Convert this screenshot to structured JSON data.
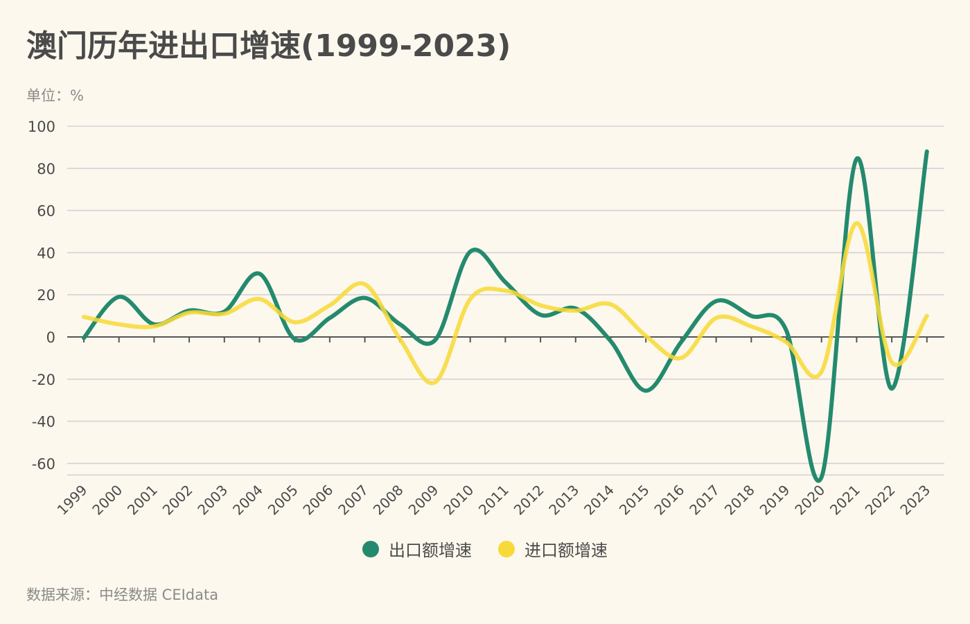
{
  "header": {
    "title": "澳门历年进出口增速(1999-2023)",
    "unit_label": "单位：%"
  },
  "footer": {
    "source": "数据来源：中经数据 CEIdata"
  },
  "colors": {
    "background": "#fcf8ee",
    "export": "#248a6e",
    "import": "#f7d93a",
    "gridline": "#d6d0d6",
    "zero_axis": "#555555",
    "text": "#4a4a4a",
    "muted_text": "#8a8a8a"
  },
  "chart_data": {
    "type": "line",
    "title": "澳门历年进出口增速(1999-2023)",
    "xlabel": "",
    "ylabel": "单位：%",
    "ylim": [
      -65.5,
      100
    ],
    "yticks": [
      100,
      80,
      60,
      40,
      20,
      0,
      -20,
      -40,
      -60
    ],
    "grid": true,
    "smooth": true,
    "legend_position": "bottom-center",
    "x": [
      "1999",
      "2000",
      "2001",
      "2002",
      "2003",
      "2004",
      "2005",
      "2006",
      "2007",
      "2008",
      "2009",
      "2010",
      "2011",
      "2012",
      "2013",
      "2014",
      "2015",
      "2016",
      "2017",
      "2018",
      "2019",
      "2020",
      "2021",
      "2022",
      "2023"
    ],
    "series": [
      {
        "name": "出口额增速",
        "color": "#248a6e",
        "values": [
          -0.5,
          19,
          6,
          12.5,
          12,
          30,
          -1,
          9,
          18.5,
          6,
          -1.5,
          40.5,
          26,
          10.5,
          13.5,
          -2,
          -25.5,
          -2.5,
          17,
          10,
          3,
          -66.5,
          84.5,
          -24.5,
          88
        ]
      },
      {
        "name": "进口额增速",
        "color": "#f7d93a",
        "values": [
          9.5,
          6,
          5,
          11.5,
          11,
          18,
          7,
          15,
          25,
          -1,
          -21.5,
          18,
          22,
          15,
          12.5,
          15.5,
          0.5,
          -10,
          9,
          5,
          -2.5,
          -16.5,
          54,
          -12,
          10
        ]
      }
    ]
  }
}
